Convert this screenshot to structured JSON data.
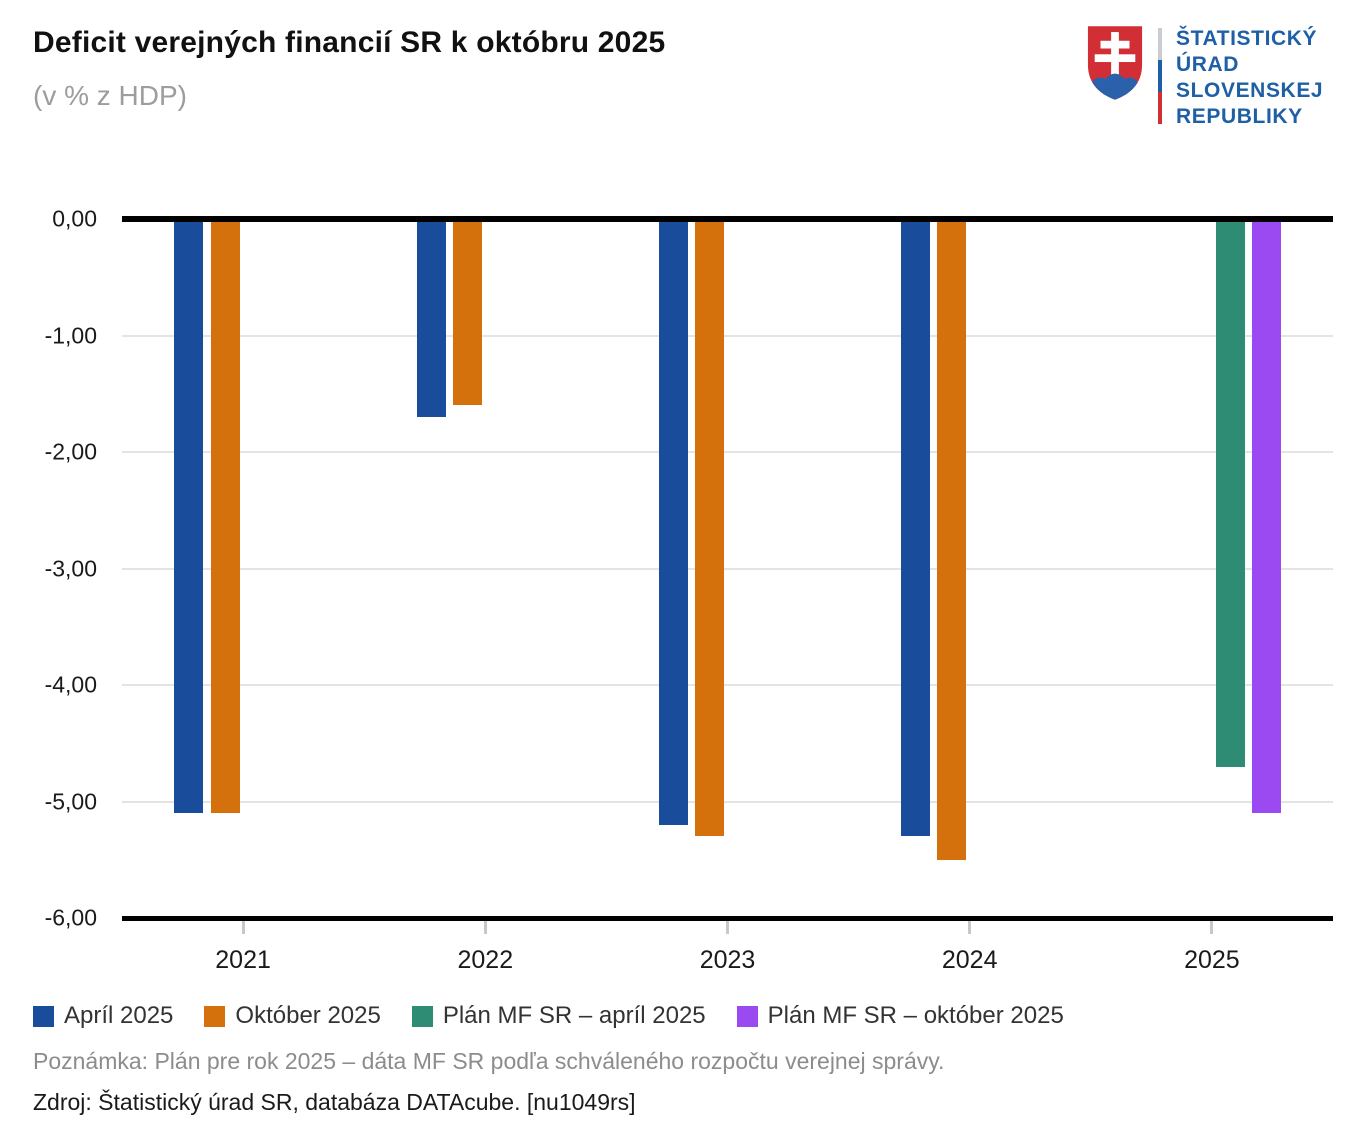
{
  "header": {
    "title": "Deficit verejných financií SR k októbru 2025",
    "subtitle": "(v % z HDP)",
    "logo": {
      "icon": "slovak-coat-of-arms-icon",
      "line1": "ŠTATISTICKÝ",
      "line2": "ÚRAD",
      "line3": "SLOVENSKEJ",
      "line4": "REPUBLIKY",
      "text_color": "#1f5fa6"
    }
  },
  "chart_data": {
    "type": "bar",
    "title": "Deficit verejných financií SR k októbru 2025",
    "subtitle": "(v % z HDP)",
    "categories": [
      "2021",
      "2022",
      "2023",
      "2024",
      "2025"
    ],
    "series": [
      {
        "name": "Apríl 2025",
        "color": "#1a4c9c",
        "values": [
          -5.1,
          -1.7,
          -5.2,
          -5.3,
          null
        ]
      },
      {
        "name": "Október 2025",
        "color": "#d5710d",
        "values": [
          -5.1,
          -1.6,
          -5.3,
          -5.5,
          null
        ]
      },
      {
        "name": "Plán MF SR – apríl 2025",
        "color": "#2e8c74",
        "values": [
          null,
          null,
          null,
          null,
          -4.7
        ]
      },
      {
        "name": "Plán MF SR – október 2025",
        "color": "#9b4af2",
        "values": [
          null,
          null,
          null,
          null,
          -5.1
        ]
      }
    ],
    "ylim": [
      -6,
      0
    ],
    "ytick_step": 1,
    "ytick_labels": [
      "0,00",
      "-1,00",
      "-2,00",
      "-3,00",
      "-4,00",
      "-5,00",
      "-6,00"
    ],
    "grid": true,
    "axis_color": "#000000",
    "grid_color": "#e4e4e4",
    "legend_position": "bottom"
  },
  "footer": {
    "note": "Poznámka: Plán pre rok 2025 – dáta MF SR podľa schváleného rozpočtu verejnej správy.",
    "source": "Zdroj: Štatistický úrad SR, databáza DATAcube. [nu1049rs]"
  }
}
